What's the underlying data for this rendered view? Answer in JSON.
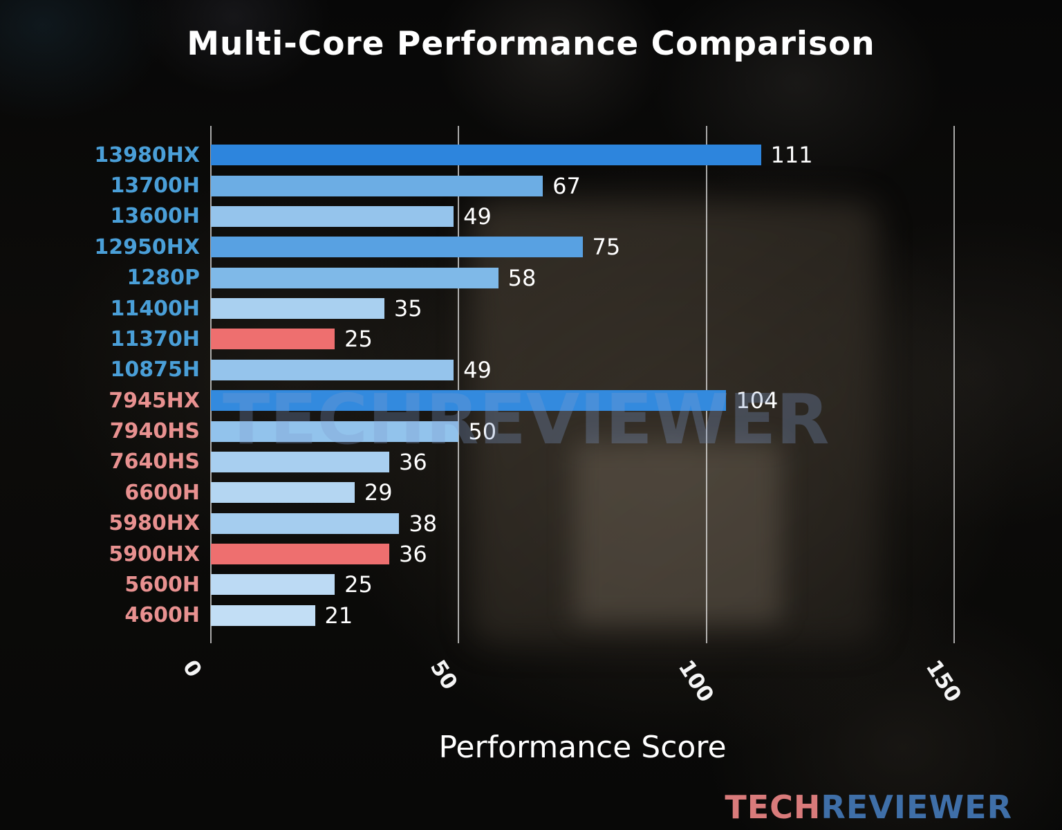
{
  "title": "Multi-Core Performance Comparison",
  "xlabel": "Performance Score",
  "watermark": "TECHREVIEWER",
  "logo": {
    "part1": "TECH",
    "part2": "REVIEWER"
  },
  "colors": {
    "logo_tech": "#d97b7b",
    "logo_reviewer": "#3f6fa8",
    "watermark": "rgba(125,155,205,0.30)",
    "intel_label": "#4a9fd8",
    "amd_label": "#e89190",
    "highlight_bar": "#ee6f6f",
    "gridline": "rgba(240,240,240,0.70)"
  },
  "chart_data": {
    "type": "bar",
    "orientation": "horizontal",
    "title": "Multi-Core Performance Comparison",
    "xlabel": "Performance Score",
    "ylabel": "",
    "xlim": [
      0,
      150
    ],
    "xticks": [
      0,
      50,
      100,
      150
    ],
    "grid": true,
    "categories": [
      "13980HX",
      "13700H",
      "13600H",
      "12950HX",
      "1280P",
      "11400H",
      "11370H",
      "10875H",
      "7945HX",
      "7940HS",
      "7640HS",
      "6600H",
      "5980HX",
      "5900HX",
      "5600H",
      "4600H"
    ],
    "values": [
      111,
      67,
      49,
      75,
      58,
      35,
      25,
      49,
      104,
      50,
      36,
      29,
      38,
      36,
      25,
      21
    ],
    "bar_colors": [
      "#2d85dd",
      "#6cade4",
      "#95c4ec",
      "#58a1e2",
      "#7fb9e8",
      "#a9d0f0",
      "#ee6f6f",
      "#95c4ec",
      "#338ade",
      "#92c3ec",
      "#a8cff0",
      "#b4d6f2",
      "#a5cdef",
      "#ee6f6f",
      "#bcdaf4",
      "#c2def5"
    ],
    "label_colors": [
      "#4a9fd8",
      "#4a9fd8",
      "#4a9fd8",
      "#4a9fd8",
      "#4a9fd8",
      "#4a9fd8",
      "#4a9fd8",
      "#4a9fd8",
      "#e89190",
      "#e89190",
      "#e89190",
      "#e89190",
      "#e89190",
      "#e89190",
      "#e89190",
      "#e89190"
    ]
  }
}
